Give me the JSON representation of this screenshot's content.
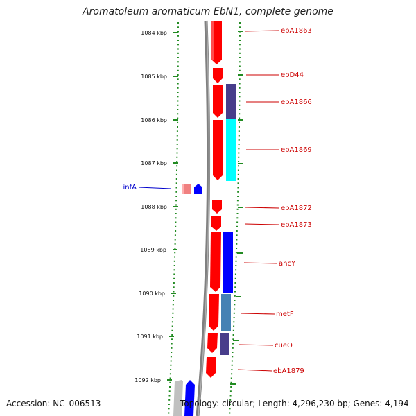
{
  "title": "Aromatoleum aromaticum EbN1, complete genome",
  "footer": {
    "accession": "Accession: NC_006513",
    "summary": "Topology: circular; Length: 4,296,230 bp; Genes: 4,194"
  },
  "colors": {
    "forward_gene": "#ff0000",
    "reverse_gene": "#0000ff",
    "pale_gene": "#f08080",
    "cog_purple": "#483d8b",
    "cog_cyan": "#00ffff",
    "cog_steel": "#4682b4",
    "backbone": "#808080",
    "tick": "#228b22",
    "label_forward": "#cc0000",
    "label_reverse": "#0000cc"
  },
  "ruler": {
    "labels": [
      "1084 kbp",
      "1085 kbp",
      "1086 kbp",
      "1087 kbp",
      "1088 kbp",
      "1089 kbp",
      "1090 kbp",
      "1091 kbp",
      "1092 kbp"
    ]
  },
  "genes": [
    {
      "label": "ebA1863",
      "strand": "+"
    },
    {
      "label": "ebD44",
      "strand": "+"
    },
    {
      "label": "ebA1866",
      "strand": "+"
    },
    {
      "label": "ebA1869",
      "strand": "+"
    },
    {
      "label": "infA",
      "strand": "-"
    },
    {
      "label": "ebA1872",
      "strand": "+"
    },
    {
      "label": "ebA1873",
      "strand": "+"
    },
    {
      "label": "ahcY",
      "strand": "+"
    },
    {
      "label": "metF",
      "strand": "+"
    },
    {
      "label": "cueO",
      "strand": "+"
    },
    {
      "label": "ebA1879",
      "strand": "+"
    }
  ]
}
